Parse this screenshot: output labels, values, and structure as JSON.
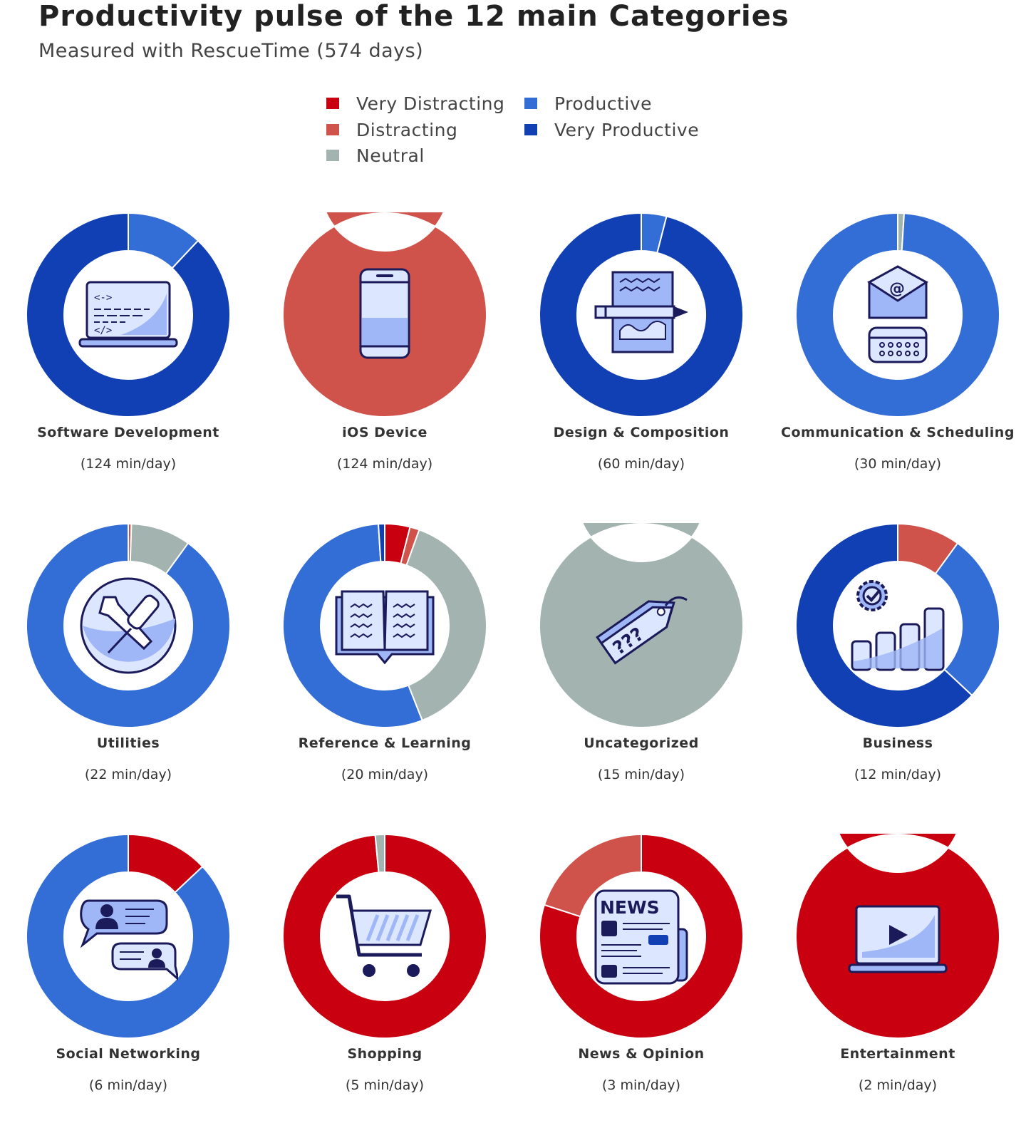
{
  "header": {
    "title": "Productivity pulse of the 12 main Categories",
    "subtitle": "Measured with RescueTime (574 days)"
  },
  "legend": [
    {
      "label": "Very Distracting",
      "color": "#c8000f"
    },
    {
      "label": "Distracting",
      "color": "#cf534b"
    },
    {
      "label": "Neutral",
      "color": "#a2b3b0"
    },
    {
      "label": "Productive",
      "color": "#336dd6"
    },
    {
      "label": "Very Productive",
      "color": "#1040b3"
    }
  ],
  "chart_data": {
    "type": "pie",
    "series_names": [
      "Very Distracting",
      "Distracting",
      "Neutral",
      "Productive",
      "Very Productive"
    ],
    "series_colors": [
      "#c8000f",
      "#cf534b",
      "#a2b3b0",
      "#336dd6",
      "#1040b3"
    ],
    "legend_position": "top-center",
    "categories": [
      {
        "name": "Software Development",
        "time": "(124 min/day)",
        "icon": "laptop-code-icon",
        "values": [
          0,
          0,
          0,
          12,
          88
        ]
      },
      {
        "name": "iOS Device",
        "time": "(124 min/day)",
        "icon": "smartphone-icon",
        "values": [
          0,
          100,
          0,
          0,
          0
        ]
      },
      {
        "name": "Design & Composition",
        "time": "(60 min/day)",
        "icon": "pencil-canvas-icon",
        "values": [
          0,
          0,
          0,
          4,
          96
        ]
      },
      {
        "name": "Communication & Scheduling",
        "time": "(30 min/day)",
        "icon": "email-calendar-icon",
        "values": [
          0,
          0,
          1,
          99,
          0
        ]
      },
      {
        "name": "Utilities",
        "time": "(22 min/day)",
        "icon": "tools-icon",
        "values": [
          0,
          0.5,
          9.5,
          90,
          0
        ]
      },
      {
        "name": "Reference & Learning",
        "time": "(20 min/day)",
        "icon": "open-book-icon",
        "values": [
          4,
          1.5,
          38.5,
          55,
          1
        ]
      },
      {
        "name": "Uncategorized",
        "time": "(15 min/day)",
        "icon": "question-tag-icon",
        "values": [
          0,
          0,
          100,
          0,
          0
        ]
      },
      {
        "name": "Business",
        "time": "(12 min/day)",
        "icon": "business-growth-icon",
        "values": [
          0,
          10,
          0,
          27,
          63
        ]
      },
      {
        "name": "Social Networking",
        "time": "(6 min/day)",
        "icon": "chat-people-icon",
        "values": [
          13,
          0,
          0,
          87,
          0
        ]
      },
      {
        "name": "Shopping",
        "time": "(5 min/day)",
        "icon": "shopping-cart-icon",
        "values": [
          98.5,
          0,
          1.5,
          0,
          0
        ]
      },
      {
        "name": "News & Opinion",
        "time": "(3 min/day)",
        "icon": "newspaper-icon",
        "values": [
          80,
          20,
          0,
          0,
          0
        ]
      },
      {
        "name": "Entertainment",
        "time": "(2 min/day)",
        "icon": "video-player-icon",
        "values": [
          100,
          0,
          0,
          0,
          0
        ]
      }
    ]
  }
}
